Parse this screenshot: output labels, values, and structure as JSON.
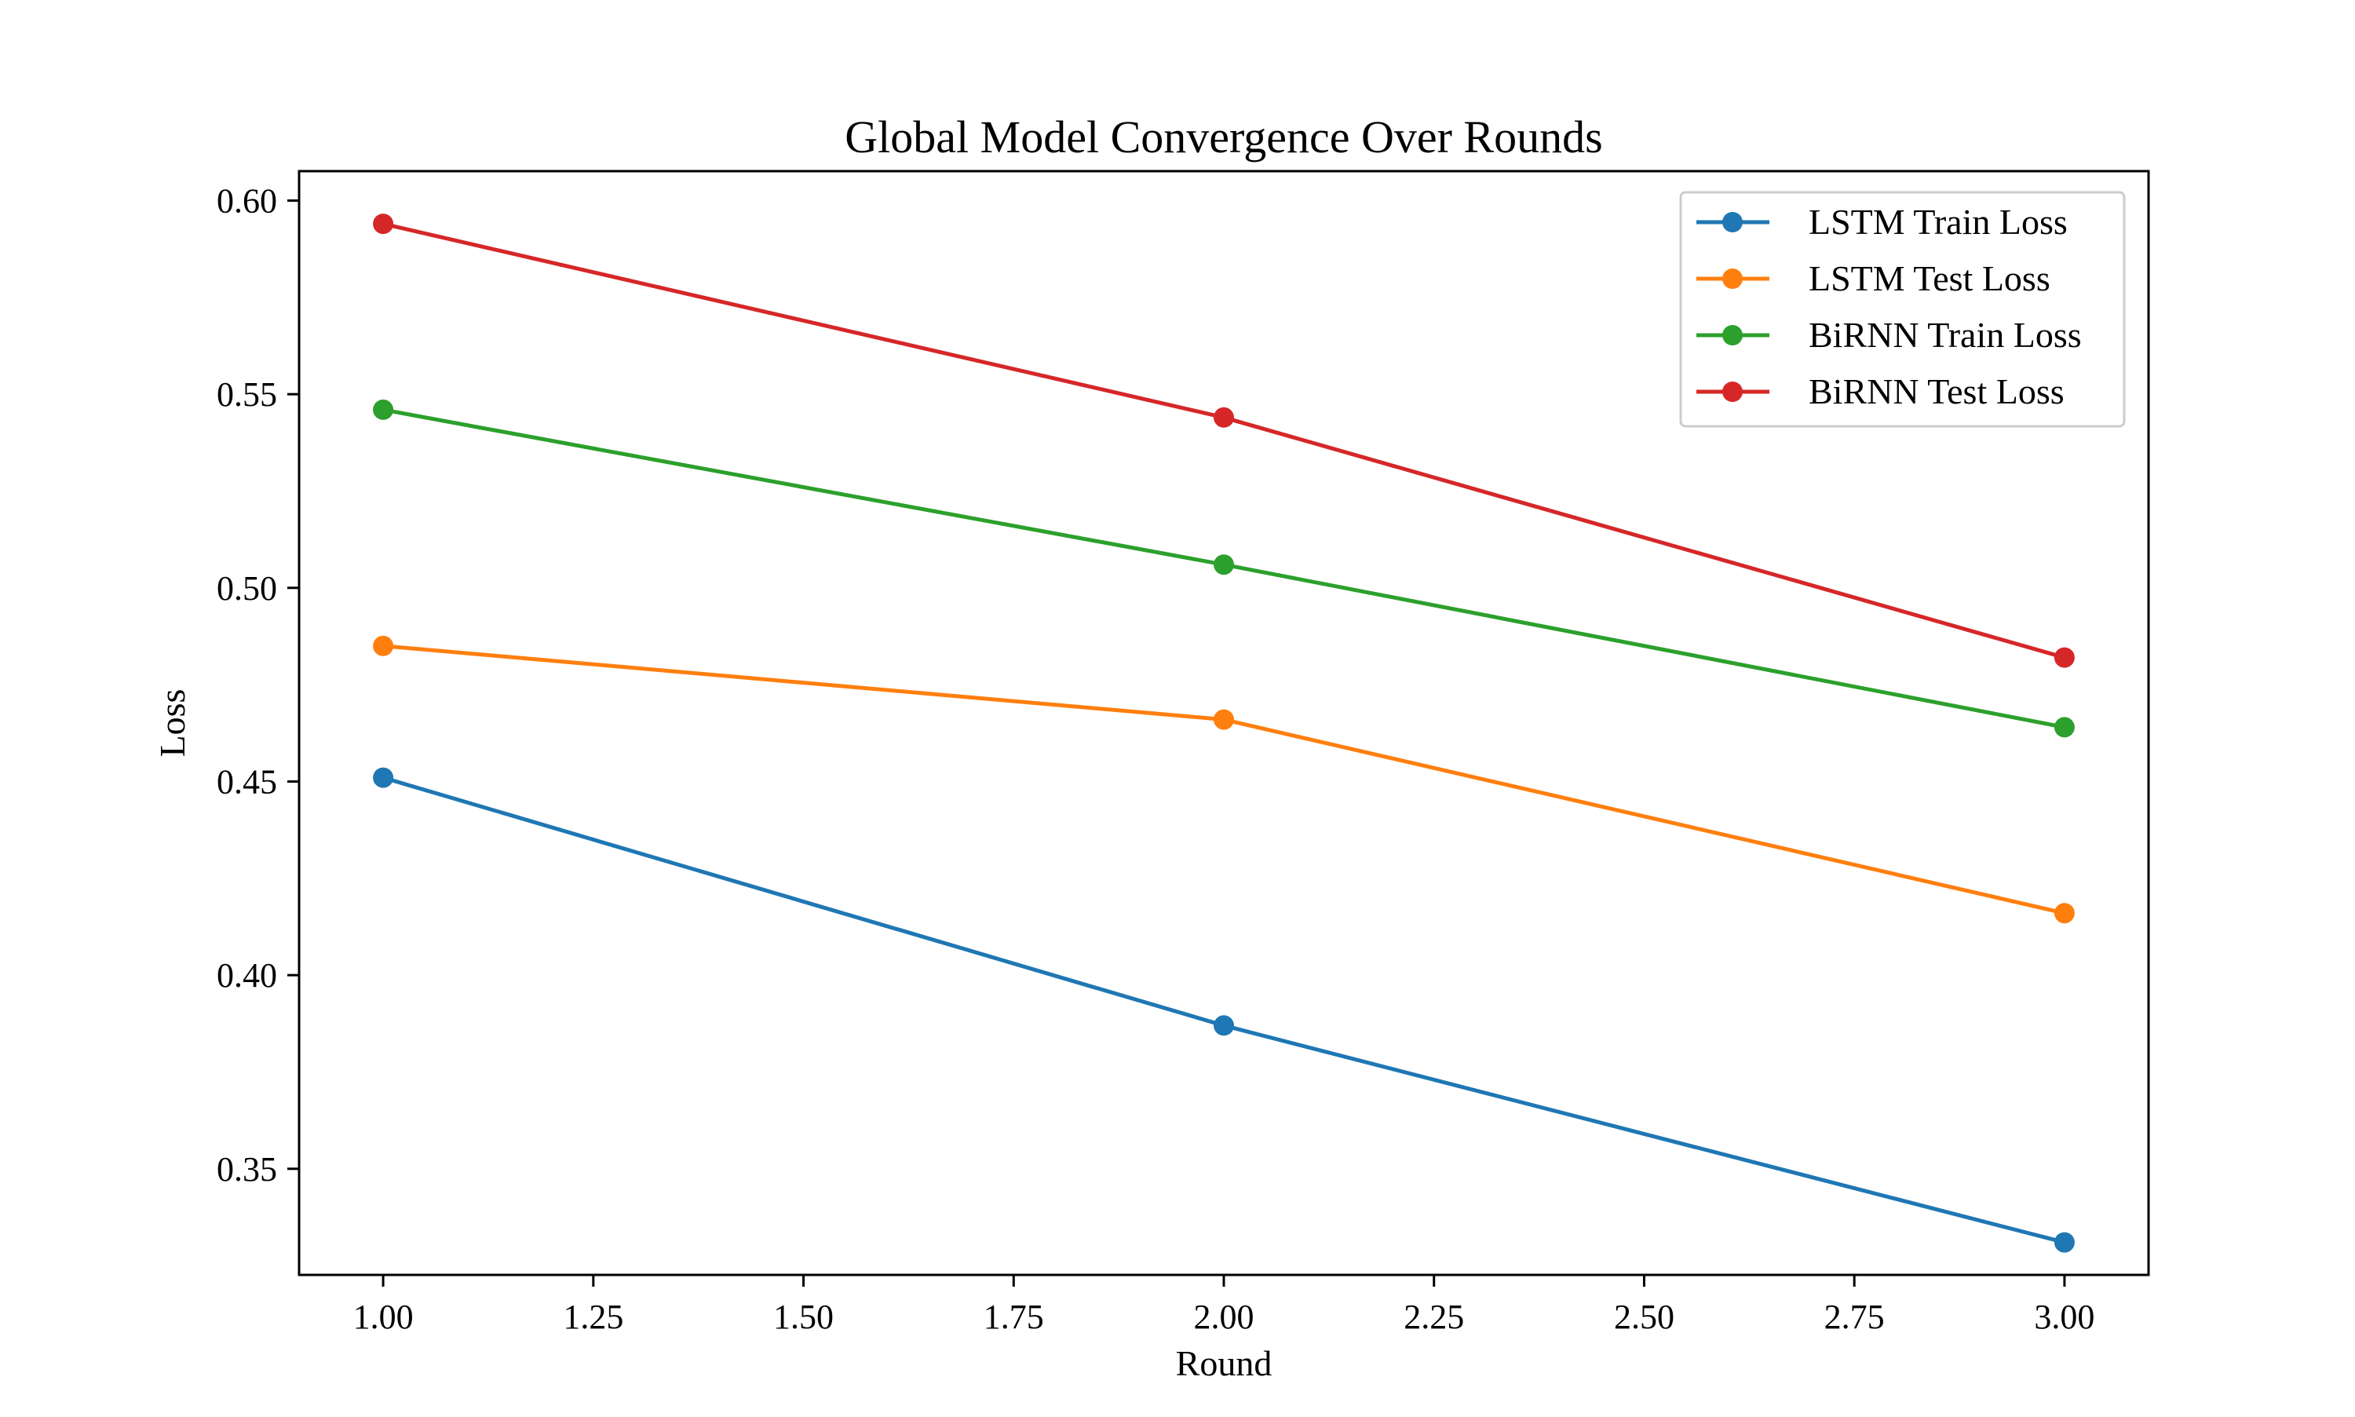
{
  "chart_data": {
    "type": "line",
    "title": "Global Model Convergence Over Rounds",
    "xlabel": "Round",
    "ylabel": "Loss",
    "x": [
      1,
      2,
      3
    ],
    "xlim": [
      0.9,
      3.1
    ],
    "ylim": [
      0.3226,
      0.6076
    ],
    "xticks": [
      1.0,
      1.25,
      1.5,
      1.75,
      2.0,
      2.25,
      2.5,
      2.75,
      3.0
    ],
    "xtick_labels": [
      "1.00",
      "1.25",
      "1.50",
      "1.75",
      "2.00",
      "2.25",
      "2.50",
      "2.75",
      "3.00"
    ],
    "yticks": [
      0.35,
      0.4,
      0.45,
      0.5,
      0.55,
      0.6
    ],
    "ytick_labels": [
      "0.35",
      "0.40",
      "0.45",
      "0.50",
      "0.55",
      "0.60"
    ],
    "grid": false,
    "legend_position": "top-right",
    "series": [
      {
        "name": "LSTM Train Loss",
        "color": "#1f77b4",
        "values": [
          0.451,
          0.387,
          0.331
        ]
      },
      {
        "name": "LSTM Test Loss",
        "color": "#ff7f0e",
        "values": [
          0.485,
          0.466,
          0.416
        ]
      },
      {
        "name": "BiRNN Train Loss",
        "color": "#2ca02c",
        "values": [
          0.546,
          0.506,
          0.464
        ]
      },
      {
        "name": "BiRNN Test Loss",
        "color": "#d62728",
        "values": [
          0.594,
          0.544,
          0.482
        ]
      }
    ]
  }
}
